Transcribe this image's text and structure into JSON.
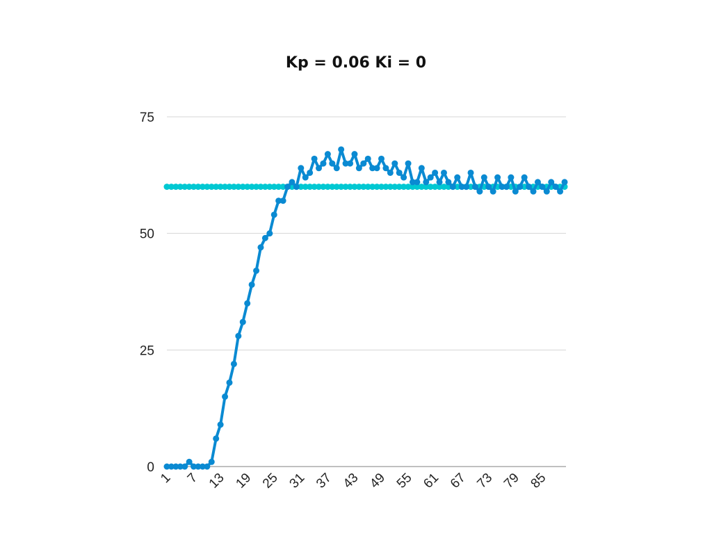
{
  "chart_data": {
    "type": "line",
    "title": "Kp = 0.06 Ki = 0",
    "xlabel": "",
    "ylabel": "",
    "ylim": [
      0,
      75
    ],
    "y_ticks": [
      "0",
      "25",
      "50",
      "75"
    ],
    "x_tick_labels": [
      "1",
      "7",
      "13",
      "19",
      "25",
      "31",
      "37",
      "43",
      "49",
      "55",
      "61",
      "67",
      "73",
      "79",
      "85"
    ],
    "x": [
      1,
      2,
      3,
      4,
      5,
      6,
      7,
      8,
      9,
      10,
      11,
      12,
      13,
      14,
      15,
      16,
      17,
      18,
      19,
      20,
      21,
      22,
      23,
      24,
      25,
      26,
      27,
      28,
      29,
      30,
      31,
      32,
      33,
      34,
      35,
      36,
      37,
      38,
      39,
      40,
      41,
      42,
      43,
      44,
      45,
      46,
      47,
      48,
      49,
      50,
      51,
      52,
      53,
      54,
      55,
      56,
      57,
      58,
      59,
      60,
      61,
      62,
      63,
      64,
      65,
      66,
      67,
      68,
      69,
      70,
      71,
      72,
      73,
      74,
      75,
      76,
      77,
      78,
      79,
      80,
      81,
      82,
      83,
      84,
      85,
      86,
      87,
      88,
      89,
      90
    ],
    "grid": true,
    "legend": "none",
    "series": [
      {
        "color": "#00c8d2",
        "values": [
          60,
          60,
          60,
          60,
          60,
          60,
          60,
          60,
          60,
          60,
          60,
          60,
          60,
          60,
          60,
          60,
          60,
          60,
          60,
          60,
          60,
          60,
          60,
          60,
          60,
          60,
          60,
          60,
          60,
          60,
          60,
          60,
          60,
          60,
          60,
          60,
          60,
          60,
          60,
          60,
          60,
          60,
          60,
          60,
          60,
          60,
          60,
          60,
          60,
          60,
          60,
          60,
          60,
          60,
          60,
          60,
          60,
          60,
          60,
          60,
          60,
          60,
          60,
          60,
          60,
          60,
          60,
          60,
          60,
          60,
          60,
          60,
          60,
          60,
          60,
          60,
          60,
          60,
          60,
          60,
          60,
          60,
          60,
          60,
          60,
          60,
          60,
          60,
          60,
          60
        ]
      },
      {
        "color": "#0a8ad2",
        "values": [
          0,
          0,
          0,
          0,
          0,
          1,
          0,
          0,
          0,
          0,
          1,
          6,
          9,
          15,
          18,
          22,
          28,
          31,
          35,
          39,
          42,
          47,
          49,
          50,
          54,
          57,
          57,
          60,
          61,
          60,
          64,
          62,
          63,
          66,
          64,
          65,
          67,
          65,
          64,
          68,
          65,
          65,
          67,
          64,
          65,
          66,
          64,
          64,
          66,
          64,
          63,
          65,
          63,
          62,
          65,
          61,
          61,
          64,
          61,
          62,
          63,
          61,
          63,
          61,
          60,
          62,
          60,
          60,
          63,
          60,
          59,
          62,
          60,
          59,
          62,
          60,
          60,
          62,
          59,
          60,
          62,
          60,
          59,
          61,
          60,
          59,
          61,
          60,
          59,
          61
        ]
      }
    ]
  }
}
